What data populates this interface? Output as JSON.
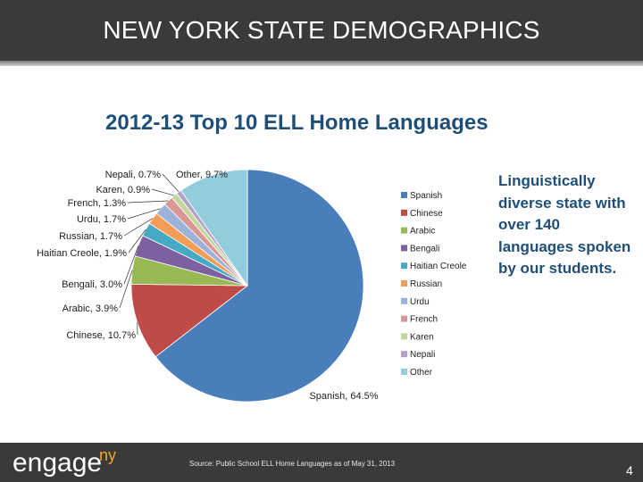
{
  "header": {
    "title": "NEW YORK STATE DEMOGRAPHICS"
  },
  "side_text": "Linguistically diverse state with over 140 languages spoken by our students.",
  "footer": {
    "logo": "engage",
    "logo_sup": "ny",
    "source": "Source: Public School ELL Home Languages as of May 31, 2013",
    "page_number": "4"
  },
  "chart_data": {
    "type": "pie",
    "title": "2012-13 Top 10 ELL Home Languages",
    "legend_position": "right",
    "slices": [
      {
        "name": "Spanish",
        "value": 64.5,
        "label": "Spanish, 64.5%",
        "color": "#4a7ebb"
      },
      {
        "name": "Chinese",
        "value": 10.7,
        "label": "Chinese, 10.7%",
        "color": "#be4b48"
      },
      {
        "name": "Arabic",
        "value": 3.9,
        "label": "Arabic, 3.9%",
        "color": "#98b954"
      },
      {
        "name": "Bengali",
        "value": 3.0,
        "label": "Bengali, 3.0%",
        "color": "#7d60a0"
      },
      {
        "name": "Haitian Creole",
        "value": 1.9,
        "label": "Haitian Creole, 1.9%",
        "color": "#46aac5"
      },
      {
        "name": "Russian",
        "value": 1.7,
        "label": "Russian, 1.7%",
        "color": "#f59d56"
      },
      {
        "name": "Urdu",
        "value": 1.7,
        "label": "Urdu, 1.7%",
        "color": "#9bb3d9"
      },
      {
        "name": "French",
        "value": 1.3,
        "label": "French, 1.3%",
        "color": "#d99694"
      },
      {
        "name": "Karen",
        "value": 0.9,
        "label": "Karen, 0.9%",
        "color": "#c3d69b"
      },
      {
        "name": "Nepali",
        "value": 0.7,
        "label": "Nepali, 0.7%",
        "color": "#b3a2c7"
      },
      {
        "name": "Other",
        "value": 9.7,
        "label": "Other, 9.7%",
        "color": "#93cddd"
      }
    ]
  }
}
